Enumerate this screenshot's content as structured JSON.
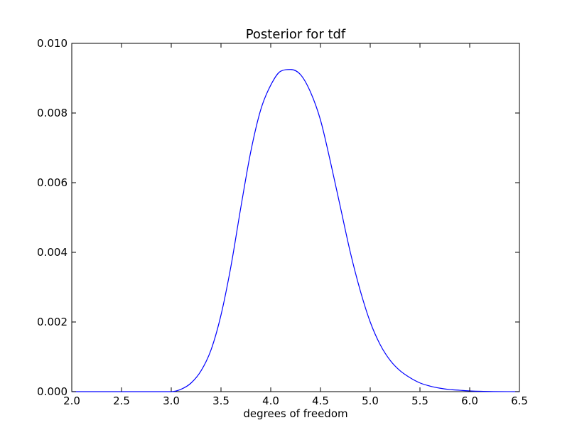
{
  "chart_data": {
    "type": "line",
    "title": "Posterior for tdf",
    "xlabel": "degrees of freedom",
    "ylabel": "",
    "xlim": [
      2.0,
      6.5
    ],
    "ylim": [
      0.0,
      0.01
    ],
    "xticks": [
      "2.0",
      "2.5",
      "3.0",
      "3.5",
      "4.0",
      "4.5",
      "5.0",
      "5.5",
      "6.0",
      "6.5"
    ],
    "yticks": [
      "0.000",
      "0.002",
      "0.004",
      "0.006",
      "0.008",
      "0.010"
    ],
    "grid": false,
    "legend": "none",
    "series": [
      {
        "color": "#0000ff",
        "x": [
          2.0,
          2.5,
          2.9,
          3.0,
          3.1,
          3.2,
          3.3,
          3.4,
          3.5,
          3.6,
          3.7,
          3.8,
          3.9,
          4.0,
          4.1,
          4.2,
          4.3,
          4.4,
          4.5,
          4.6,
          4.7,
          4.8,
          4.9,
          5.0,
          5.1,
          5.2,
          5.3,
          5.4,
          5.5,
          5.6,
          5.7,
          5.8,
          5.9,
          6.0,
          6.2,
          6.5
        ],
        "y": [
          0.0,
          0.0,
          0.0,
          0.0,
          7e-05,
          0.00025,
          0.0006,
          0.0012,
          0.0022,
          0.0036,
          0.0053,
          0.0069,
          0.0081,
          0.0088,
          0.0092,
          0.00925,
          0.0091,
          0.0086,
          0.0078,
          0.0066,
          0.0053,
          0.004,
          0.0029,
          0.002,
          0.00135,
          0.0009,
          0.0006,
          0.0004,
          0.00025,
          0.00016,
          0.0001,
          6e-05,
          4e-05,
          2e-05,
          5e-06,
          0.0
        ]
      }
    ]
  }
}
